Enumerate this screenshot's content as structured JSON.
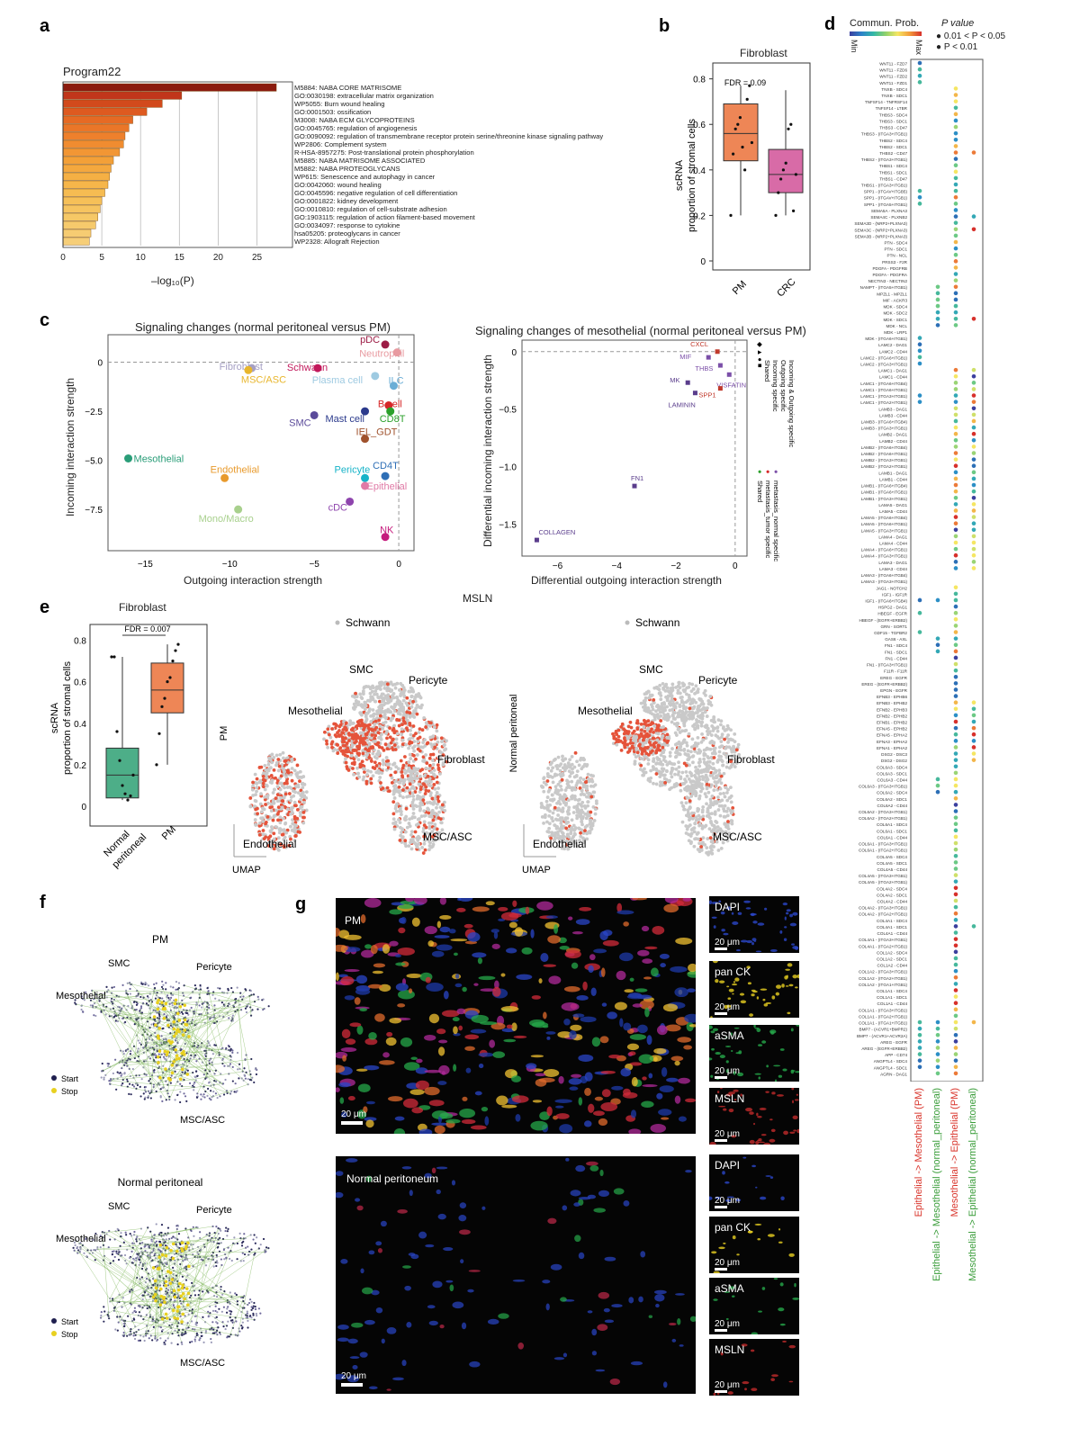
{
  "panels": {
    "a": "a",
    "b": "b",
    "c": "c",
    "d": "d",
    "e": "e",
    "f": "f",
    "g": "g"
  },
  "a": {
    "title": "Program22",
    "xlabel": "–log₁₀(P)",
    "ticks": [
      "0",
      "5",
      "10",
      "15",
      "20",
      "25"
    ],
    "terms": [
      {
        "label": "M5884: NABA CORE MATRISOME",
        "value": 27.5
      },
      {
        "label": "GO:0030198: extracellular matrix organization",
        "value": 15.3
      },
      {
        "label": "WP5055: Burn wound healing",
        "value": 12.8
      },
      {
        "label": "GO:0001503: ossification",
        "value": 10.8
      },
      {
        "label": "M3008: NABA ECM GLYCOPROTEINS",
        "value": 9.0
      },
      {
        "label": "GO:0045765: regulation of angiogenesis",
        "value": 8.5
      },
      {
        "label": "GO:0090092: regulation of transmembrane receptor protein serine/threonine kinase signaling pathway",
        "value": 8.0
      },
      {
        "label": "WP2806: Complement system",
        "value": 7.8
      },
      {
        "label": "R-HSA-8957275: Post-translational protein phosphorylation",
        "value": 7.3
      },
      {
        "label": "M5885: NABA MATRISOME ASSOCIATED",
        "value": 6.5
      },
      {
        "label": "M5882: NABA PROTEOGLYCANS",
        "value": 6.2
      },
      {
        "label": "WP615: Senescence and autophagy in cancer",
        "value": 6.0
      },
      {
        "label": "GO:0042060: wound healing",
        "value": 5.8
      },
      {
        "label": "GO:0045596: negative regulation of cell differentiation",
        "value": 5.4
      },
      {
        "label": "GO:0001822: kidney development",
        "value": 5.0
      },
      {
        "label": "GO:0010810: regulation of cell-substrate adhesion",
        "value": 4.8
      },
      {
        "label": "GO:1903115: regulation of action filament-based movement",
        "value": 4.5
      },
      {
        "label": "GO:0034097: response to cytokine",
        "value": 4.2
      },
      {
        "label": "hsa05205: proteoglycans in cancer",
        "value": 3.6
      },
      {
        "label": "WP2328: Allograft Rejection",
        "value": 3.4
      }
    ]
  },
  "b": {
    "title": "Fibroblast",
    "fdr": "FDR = 0.09",
    "ylabel": "scRNA\nproportion of stromal cells",
    "yticks": [
      "0",
      "0.2",
      "0.4",
      "0.6",
      "0.8"
    ],
    "groups": [
      "PM",
      "CRC"
    ]
  },
  "c": {
    "left_title": "Signaling changes  (normal peritoneal versus PM)",
    "left_xlabel": "Outgoing interaction strength",
    "left_ylabel": "Incoming interaction strength",
    "left_xticks": [
      "−15",
      "−10",
      "−5",
      "0"
    ],
    "left_yticks": [
      "0",
      "−2.5",
      "−5.0",
      "−7.5"
    ],
    "cells": [
      {
        "name": "pDC",
        "x": -0.8,
        "y": 0.9,
        "color": "#9c1c45"
      },
      {
        "name": "Neutrophil",
        "x": -0.1,
        "y": 0.5,
        "color": "#e89aa0"
      },
      {
        "name": "Fibroblast",
        "x": -8.7,
        "y": -0.3,
        "color": "#a6a0c4"
      },
      {
        "name": "Schwann",
        "x": -4.8,
        "y": -0.3,
        "color": "#c2185b"
      },
      {
        "name": "MSC/ASC",
        "x": -8.9,
        "y": -0.4,
        "color": "#e8b62c"
      },
      {
        "name": "Plasma cell",
        "x": -1.4,
        "y": -0.7,
        "color": "#9ecae1"
      },
      {
        "name": "ILC",
        "x": -0.3,
        "y": -1.2,
        "color": "#6baed6"
      },
      {
        "name": "B cell",
        "x": -0.6,
        "y": -2.2,
        "color": "#d62728"
      },
      {
        "name": "Mast cell",
        "x": -2.0,
        "y": -2.5,
        "color": "#2b3a8c"
      },
      {
        "name": "CD8T",
        "x": -0.5,
        "y": -2.5,
        "color": "#2ca02c"
      },
      {
        "name": "SMC",
        "x": -5.0,
        "y": -2.7,
        "color": "#5b4b9a"
      },
      {
        "name": "IEL_GDT",
        "x": -2.0,
        "y": -3.9,
        "color": "#a0522d"
      },
      {
        "name": "Mesothelial",
        "x": -16.0,
        "y": -4.9,
        "color": "#2a9d78"
      },
      {
        "name": "Endothelial",
        "x": -10.3,
        "y": -5.9,
        "color": "#e89a2c"
      },
      {
        "name": "Pericyte",
        "x": -2.0,
        "y": -5.9,
        "color": "#17b3c8"
      },
      {
        "name": "CD4T",
        "x": -0.8,
        "y": -5.8,
        "color": "#2f6fb6"
      },
      {
        "name": "Epithelial",
        "x": -2.0,
        "y": -6.3,
        "color": "#e07aa6"
      },
      {
        "name": "cDC",
        "x": -2.9,
        "y": -7.1,
        "color": "#8e44ad"
      },
      {
        "name": "Mono/Macro",
        "x": -9.5,
        "y": -7.5,
        "color": "#a8d08d"
      },
      {
        "name": "NK",
        "x": -0.8,
        "y": -8.9,
        "color": "#c51b7d"
      }
    ],
    "right_title": "Signaling changes of mesothelial (normal peritoneal versus PM)",
    "right_xlabel": "Differential outgoing interaction strength",
    "right_ylabel": "Differential incoming interaction strength",
    "right_xticks": [
      "−6",
      "−4",
      "−2",
      "0"
    ],
    "right_yticks": [
      "0",
      "−0.5",
      "−1.0",
      "−1.5"
    ],
    "pathways": [
      {
        "name": "CXCL",
        "x": -0.6,
        "y": 0.0,
        "color": "#c0392b"
      },
      {
        "name": "MIF",
        "x": -0.9,
        "y": -0.05,
        "color": "#7b4fa8"
      },
      {
        "name": "THBS",
        "x": -0.5,
        "y": -0.12,
        "color": "#7b4fa8"
      },
      {
        "name": "VISFATIN",
        "x": -0.2,
        "y": -0.2,
        "color": "#7b4fa8"
      },
      {
        "name": "MK",
        "x": -1.6,
        "y": -0.27,
        "color": "#5a3d8c"
      },
      {
        "name": "SPP1",
        "x": -0.5,
        "y": -0.32,
        "color": "#c0392b"
      },
      {
        "name": "LAMININ",
        "x": -1.35,
        "y": -0.36,
        "color": "#5a3d8c"
      },
      {
        "name": "FN1",
        "x": -3.4,
        "y": -1.17,
        "color": "#5a3d8c"
      },
      {
        "name": "COLLAGEN",
        "x": -6.7,
        "y": -1.64,
        "color": "#5a3d8c"
      }
    ],
    "legend_shapes": [
      "Shared",
      "Incoming specific",
      "Outgoing specific",
      "Incoming & Outgoing specific"
    ],
    "legend_colors": [
      "Shared",
      "metastasis_tumor specific",
      "metastasis_normal specific"
    ]
  },
  "d": {
    "legend_title": "Commun. Prob.",
    "legend_min": "Min",
    "legend_max": "Max",
    "pvalue_title": "P value",
    "pvalue_a": "0.01 < P < 0.05",
    "pvalue_b": "P < 0.01",
    "columns": [
      {
        "label": "Epithelial -> Mesothelial (PM)",
        "color": "#d9342b"
      },
      {
        "label": "Epithelial -> Mesothelial (normal_peritoneal)",
        "color": "#3a9d3a"
      },
      {
        "label": "Mesothelial -> Epithelial (PM)",
        "color": "#d9342b"
      },
      {
        "label": "Mesothelial -> Epithelial (normal_peritoneal)",
        "color": "#3a9d3a"
      }
    ],
    "rows": [
      "WNT11 - FZD7",
      "WNT11 - FZD6",
      "WNT11 - FZD2",
      "WNT11 - FZD1",
      "TNXB - SDC4",
      "TNXB - SDC1",
      "TNFSF14 - TNFRSF14",
      "TNFSF14 - LTBR",
      "THBS3 - SDC4",
      "THBS3 - SDC1",
      "THBS3 - CD47",
      "THBS3 - (ITGA3+ITGB1)",
      "THBS2 - SDC4",
      "THBS2 - SDC1",
      "THBS2 - CD47",
      "THBS2 - (ITGA3+ITGB1)",
      "THBS1 - SDC4",
      "THBS1 - SDC1",
      "THBS1 - CD47",
      "THBS1 - (ITGA3+ITGB1)",
      "SPP1 - (ITGAV+ITGB5)",
      "SPP1 - (ITGAV+ITGB1)",
      "SPP1 - (ITGA5+ITGB1)",
      "SEMA5A - PLXNA3",
      "SEMA4C - PLXNB2",
      "SEMA3D - (NRP2+PLXNA3)",
      "SEMA3C - (NRP2+PLXNA3)",
      "SEMA3B - (NRP2+PLXNA3)",
      "PTN - SDC4",
      "PTN - SDC1",
      "PTN - NCL",
      "PRSS3 - F2R",
      "PDGFA - PDGFRB",
      "PDGFA - PDGFRA",
      "NECTIN3 - NECTIN2",
      "NAMPT - (ITGA5+ITGB1)",
      "MPZL1 - MPZL1",
      "MIF - ACKR3",
      "MDK - SDC4",
      "MDK - SDC2",
      "MDK - SDC1",
      "MDK - NCL",
      "MDK - LRP1",
      "MDK - (ITGA6+ITGB1)",
      "LAMC2 - DAG1",
      "LAMC2 - CD44",
      "LAMC2 - (ITGA6+ITGB1)",
      "LAMC2 - (ITGA3+ITGB1)",
      "LAMC1 - DAG1",
      "LAMC1 - CD44",
      "LAMC1 - (ITGA6+ITGB4)",
      "LAMC1 - (ITGA6+ITGB1)",
      "LAMC1 - (ITGA3+ITGB1)",
      "LAMC1 - (ITGA2+ITGB1)",
      "LAMB3 - DAG1",
      "LAMB3 - CD44",
      "LAMB3 - (ITGA6+ITGB4)",
      "LAMB3 - (ITGA3+ITGB1)",
      "LAMB2 - DAG1",
      "LAMB2 - CD44",
      "LAMB2 - (ITGA6+ITGB4)",
      "LAMB2 - (ITGA6+ITGB1)",
      "LAMB2 - (ITGA3+ITGB1)",
      "LAMB2 - (ITGA2+ITGB1)",
      "LAMB1 - DAG1",
      "LAMB1 - CD44",
      "LAMB1 - (ITGA6+ITGB4)",
      "LAMB1 - (ITGA6+ITGB1)",
      "LAMB1 - (ITGA3+ITGB1)",
      "LAMA5 - DAG1",
      "LAMA5 - CD44",
      "LAMA5 - (ITGA6+ITGB4)",
      "LAMA5 - (ITGA6+ITGB1)",
      "LAMA5 - (ITGA3+ITGB1)",
      "LAMA4 - DAG1",
      "LAMA4 - CD44",
      "LAMA4 - (ITGA6+ITGB1)",
      "LAMA4 - (ITGA3+ITGB1)",
      "LAMA3 - DAG1",
      "LAMA3 - CD44",
      "LAMA3 - (ITGA6+ITGB4)",
      "LAMA3 - (ITGA3+ITGB1)",
      "JAG1 - NOTCH2",
      "IGF1 - IGF1R",
      "IGF1 - (ITGA6+ITGB4)",
      "HSPG2 - DAG1",
      "HBEGF - EGFR",
      "HBEGF - (EGFR+ERBB2)",
      "GRN - SORT1",
      "GDF15 - TGFBR2",
      "GAS6 - AXL",
      "FN1 - SDC4",
      "FN1 - SDC1",
      "FN1 - CD44",
      "FN1 - (ITGA3+ITGB1)",
      "F11R - F11R",
      "EREG - EGFR",
      "EREG - (EGFR+ERBB2)",
      "EPGN - EGFR",
      "EFNB3 - EPHB6",
      "EFNB3 - EPHB2",
      "EFNB2 - EPHB3",
      "EFNB2 - EPHB2",
      "EFNB1 - EPHB2",
      "EFNA5 - EPHB2",
      "EFNA5 - EPHA2",
      "EFNA3 - EPHA2",
      "EFNA1 - EPHA2",
      "DSG2 - DSC3",
      "DSG2 - DSG2",
      "COL6A3 - SDC4",
      "COL6A3 - SDC1",
      "COL6A3 - CD44",
      "COL6A3 - (ITGA3+ITGB1)",
      "COL6A2 - SDC4",
      "COL6A2 - SDC1",
      "COL6A2 - CD44",
      "COL6A2 - (ITGA3+ITGB1)",
      "COL6A2 - (ITGA2+ITGB1)",
      "COL6A1 - SDC4",
      "COL6A1 - SDC1",
      "COL6A1 - CD44",
      "COL6A1 - (ITGA3+ITGB1)",
      "COL6A1 - (ITGA2+ITGB1)",
      "COL4A5 - SDC4",
      "COL4A5 - SDC1",
      "COL4A5 - CD44",
      "COL4A5 - (ITGA3+ITGB1)",
      "COL4A5 - (ITGA2+ITGB1)",
      "COL4A2 - SDC4",
      "COL4A2 - SDC1",
      "COL4A2 - CD44",
      "COL4A2 - (ITGA3+ITGB1)",
      "COL4A2 - (ITGA2+ITGB1)",
      "COL4A1 - SDC4",
      "COL4A1 - SDC1",
      "COL4A1 - CD44",
      "COL4A1 - (ITGA3+ITGB1)",
      "COL4A1 - (ITGA2+ITGB1)",
      "COL1A2 - SDC4",
      "COL1A2 - SDC1",
      "COL1A2 - CD44",
      "COL1A2 - (ITGA3+ITGB1)",
      "COL1A2 - (ITGA2+ITGB1)",
      "COL1A2 - (ITGA1+ITGB1)",
      "COL1A1 - SDC4",
      "COL1A1 - SDC1",
      "COL1A1 - CD44",
      "COL1A1 - (ITGA3+ITGB1)",
      "COL1A1 - (ITGA2+ITGB1)",
      "COL1A1 - (ITGA1+ITGB1)",
      "BMP7 - (ACVR1+BMPR2)",
      "BMP7 - (ACVR1+ACVR2A)",
      "AREG - EGFR",
      "AREG - (EGFR+ERBB2)",
      "APP - CD74",
      "ANGPTL4 - SDC4",
      "ANGPTL4 - SDC1",
      "AGRN - DAG1"
    ]
  },
  "e": {
    "title": "Fibroblast",
    "fdr": "FDR = 0.007",
    "ylabel": "scRNA\nproportion of stromal cells",
    "yticks": [
      "0",
      "0.2",
      "0.4",
      "0.6",
      "0.8"
    ],
    "groups": [
      "Normal\nperitoneal",
      "PM"
    ],
    "gene": "MSLN",
    "umap_rows": [
      "PM",
      "Normal peritoneal"
    ],
    "umap_axis": "UMAP",
    "umap_labels": [
      "Schwann",
      "SMC",
      "Pericyte",
      "Mesothelial",
      "Fibroblast",
      "Endothelial",
      "MSC/ASC"
    ]
  },
  "f": {
    "top_title": "PM",
    "bottom_title": "Normal peritoneal",
    "labels": [
      "SMC",
      "Pericyte",
      "Mesothelial",
      "MSC/ASC"
    ],
    "start": "Start",
    "stop": "Stop"
  },
  "g": {
    "top_label": "PM",
    "bottom_label": "Normal peritoneum",
    "scale": "20 μm",
    "channels": [
      "DAPI",
      "pan CK",
      "aSMA",
      "MSLN"
    ]
  }
}
